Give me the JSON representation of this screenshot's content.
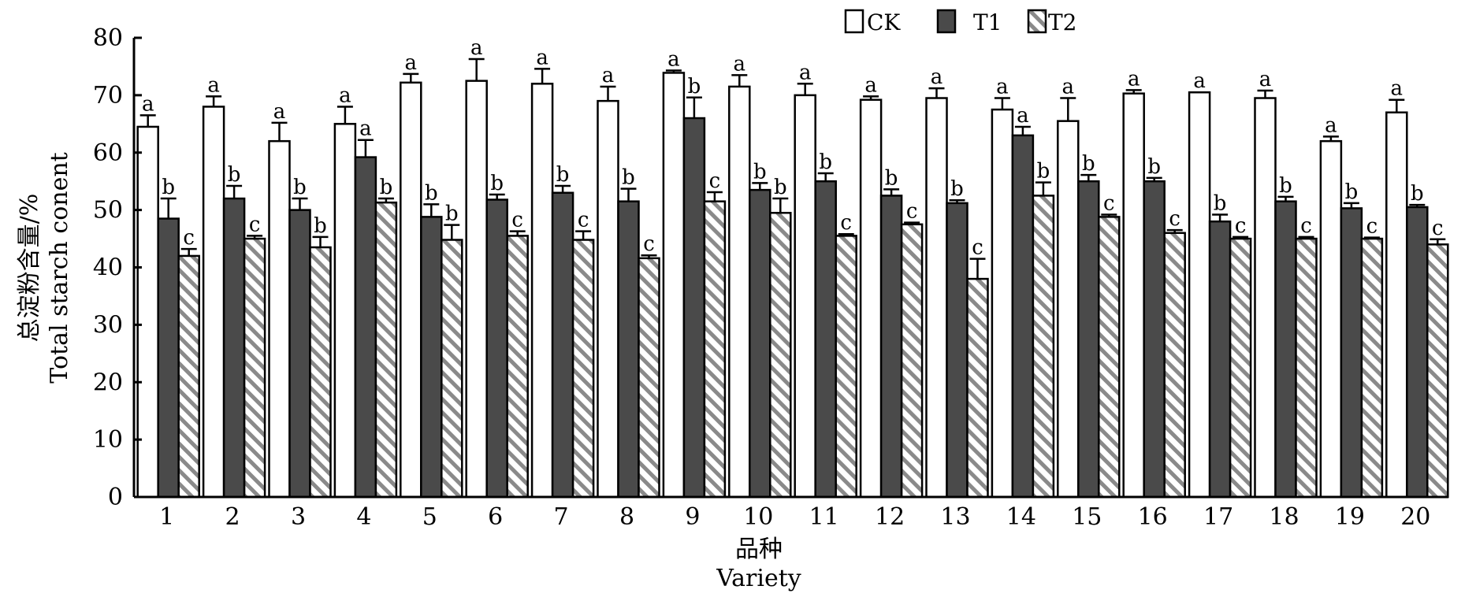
{
  "chart_data": {
    "type": "bar",
    "ylabel_zh": "总淀粉含量/%",
    "ylabel_en": "Total starch conent",
    "xlabel_zh": "品种",
    "xlabel_en": "Variety",
    "ylim": [
      0,
      80
    ],
    "yticks": [
      "0",
      "10",
      "20",
      "30",
      "40",
      "50",
      "60",
      "70",
      "80"
    ],
    "categories": [
      "1",
      "2",
      "3",
      "4",
      "5",
      "6",
      "7",
      "8",
      "9",
      "10",
      "11",
      "12",
      "13",
      "14",
      "15",
      "16",
      "17",
      "18",
      "19",
      "20"
    ],
    "legend_position": "top-right",
    "series": [
      {
        "name": "CK",
        "color": "#ffffff",
        "values": [
          64.5,
          68.0,
          62.0,
          65.0,
          72.2,
          72.5,
          72.0,
          69.0,
          73.9,
          71.5,
          70.0,
          69.2,
          69.5,
          67.5,
          65.5,
          70.3,
          70.5,
          69.5,
          62.0,
          67.0
        ],
        "errors": [
          2.0,
          1.8,
          3.2,
          3.0,
          1.5,
          3.8,
          2.6,
          2.5,
          0.4,
          2.0,
          2.0,
          0.6,
          1.7,
          2.0,
          4.0,
          0.6,
          0.0,
          1.3,
          0.8,
          2.2
        ],
        "labels": [
          "a",
          "a",
          "a",
          "a",
          "a",
          "a",
          "a",
          "a",
          "a",
          "a",
          "a",
          "a",
          "a",
          "a",
          "a",
          "a",
          "a",
          "a",
          "a",
          "a"
        ]
      },
      {
        "name": "T1",
        "color": "#4a4a4a",
        "values": [
          48.5,
          52.0,
          50.0,
          59.2,
          48.8,
          51.8,
          53.0,
          51.5,
          66.0,
          53.5,
          55.0,
          52.5,
          51.2,
          63.0,
          55.0,
          55.0,
          48.0,
          51.5,
          50.3,
          50.5
        ],
        "errors": [
          3.5,
          2.2,
          2.0,
          3.0,
          2.2,
          0.9,
          1.2,
          2.2,
          3.6,
          1.2,
          1.4,
          1.1,
          0.5,
          1.5,
          1.1,
          0.6,
          1.2,
          0.8,
          0.9,
          0.4
        ],
        "labels": [
          "b",
          "b",
          "b",
          "a",
          "b",
          "b",
          "b",
          "b",
          "b",
          "b",
          "b",
          "b",
          "b",
          "a",
          "b",
          "b",
          "b",
          "b",
          "b",
          "b"
        ]
      },
      {
        "name": "T2",
        "color": "#9a9a9a",
        "values": [
          42.0,
          45.0,
          43.5,
          51.3,
          44.8,
          45.5,
          44.8,
          41.6,
          51.5,
          49.5,
          45.5,
          47.5,
          38.0,
          52.5,
          48.8,
          46.0,
          45.0,
          45.0,
          45.0,
          44.0
        ],
        "errors": [
          1.2,
          0.5,
          1.8,
          0.7,
          2.6,
          0.8,
          1.5,
          0.5,
          1.6,
          2.5,
          0.3,
          0.3,
          3.5,
          2.3,
          0.4,
          0.5,
          0.3,
          0.3,
          0.2,
          0.9
        ],
        "labels": [
          "c",
          "c",
          "b",
          "b",
          "b",
          "c",
          "c",
          "c",
          "c",
          "b",
          "c",
          "c",
          "c",
          "b",
          "c",
          "c",
          "c",
          "c",
          "c",
          "c"
        ]
      }
    ]
  }
}
